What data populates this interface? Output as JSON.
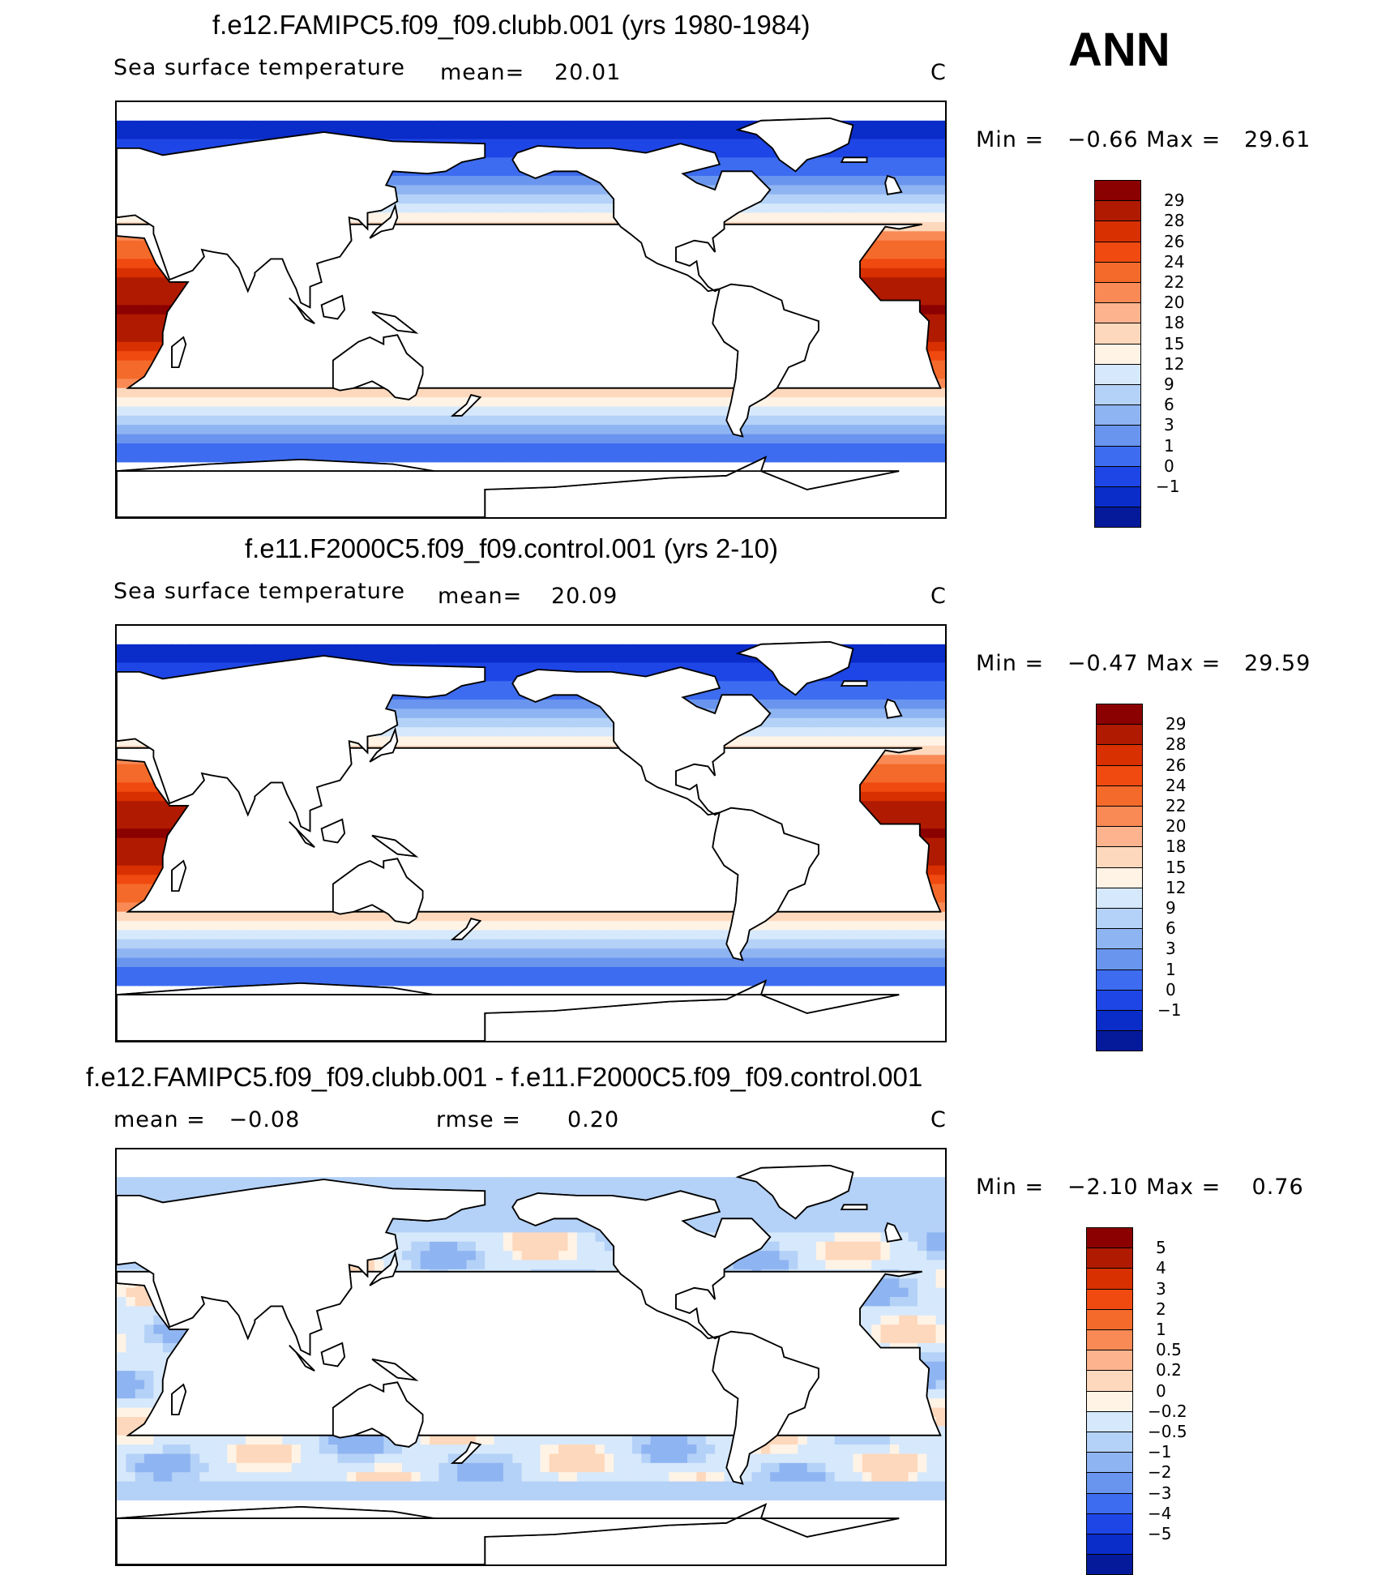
{
  "season": "ANN",
  "panels": [
    {
      "title": "f.e12.FAMIPC5.f09_f09.clubb.001 (yrs 1980-1984)",
      "left_label": "Sea surface temperature",
      "mean_label": "mean=",
      "mean_value": "20.01",
      "units": "C",
      "minmax": "Min =   −0.66 Max =   29.61",
      "field": "sst"
    },
    {
      "title": "f.e11.F2000C5.f09_f09.control.001 (yrs 2-10)",
      "left_label": "Sea surface temperature",
      "mean_label": "mean=",
      "mean_value": "20.09",
      "units": "C",
      "minmax": "Min =   −0.47 Max =   29.59",
      "field": "sst2"
    },
    {
      "title": "f.e12.FAMIPC5.f09_f09.clubb.001 - f.e11.F2000C5.f09_f09.control.001",
      "left_label": "mean =   −0.08",
      "mean_label": "rmse =",
      "mean_value": "0.20",
      "units": "C",
      "minmax": "Min =   −2.10 Max =    0.76",
      "field": "diff"
    }
  ],
  "colorbars": {
    "sst": {
      "labels": [
        "29",
        "28",
        "26",
        "24",
        "22",
        "20",
        "18",
        "15",
        "12",
        "9",
        "6",
        "3",
        "1",
        "0",
        "−1"
      ],
      "colors": [
        "#8b0000",
        "#b01a00",
        "#d83000",
        "#f04a10",
        "#f46a2a",
        "#f98a55",
        "#fcb38e",
        "#fed8bc",
        "#fff3e6",
        "#d6e8fb",
        "#b4d1f7",
        "#8eb4f2",
        "#6a95ee",
        "#3d6cf0",
        "#1e46e6",
        "#0a2cc8",
        "#051a9a"
      ]
    },
    "diff": {
      "labels": [
        "5",
        "4",
        "3",
        "2",
        "1",
        "0.5",
        "0.2",
        "0",
        "−0.2",
        "−0.5",
        "−1",
        "−2",
        "−3",
        "−4",
        "−5"
      ],
      "colors": [
        "#8b0000",
        "#b01a00",
        "#d83000",
        "#f04a10",
        "#f46a2a",
        "#f98a55",
        "#fcb38e",
        "#fed8bc",
        "#fff3e6",
        "#d6e8fb",
        "#b4d1f7",
        "#8eb4f2",
        "#6a95ee",
        "#3d6cf0",
        "#1e46e6",
        "#0a2cc8",
        "#051a9a"
      ]
    }
  }
}
